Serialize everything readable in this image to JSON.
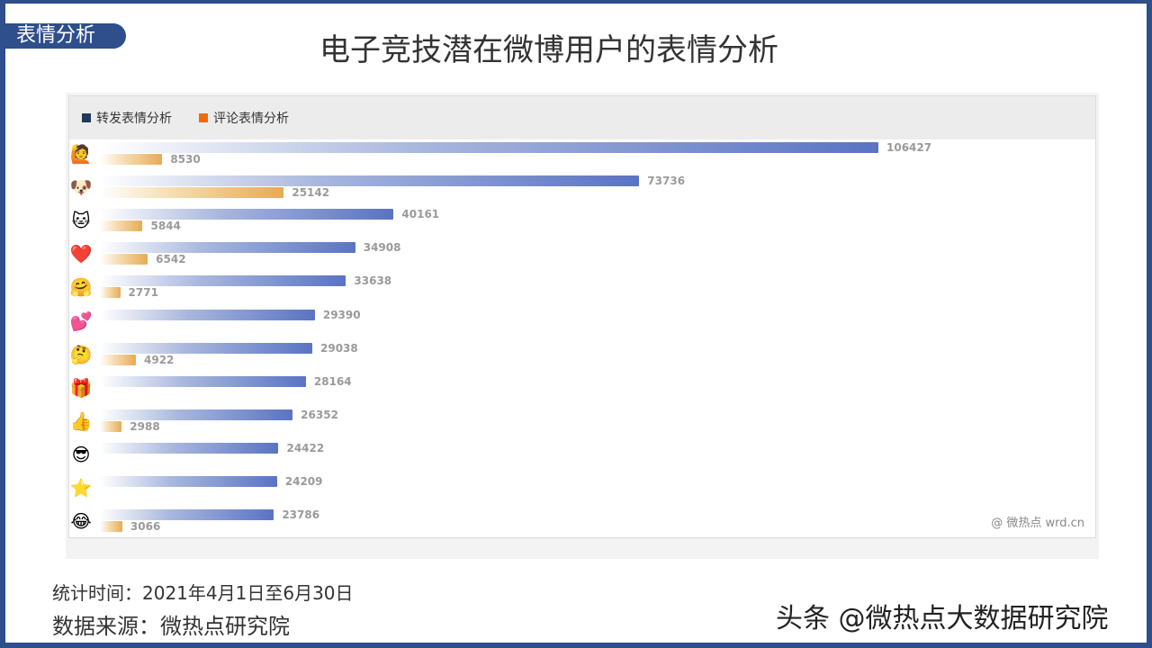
{
  "tag": "表情分析",
  "title": "电子竞技潜在微博用户的表情分析",
  "footer": {
    "time": "统计时间：2021年4月1日至6月30日",
    "source": "数据来源：微热点研究院",
    "brand": "头条 @微热点大数据研究院"
  },
  "watermark": "@ 微热点  wrd.cn",
  "colors": {
    "frame": "#2e4e8c",
    "forward": "#5a73c3",
    "comment": "#e8aa55",
    "legend_forward": "#1f3a5c",
    "legend_comment": "#ee6a12"
  },
  "chart_data": {
    "type": "bar",
    "orientation": "horizontal",
    "legend_position": "top-left",
    "categories": [
      "emoji-1",
      "emoji-2",
      "emoji-3",
      "emoji-4",
      "emoji-5",
      "emoji-6",
      "emoji-7",
      "emoji-8",
      "emoji-9",
      "emoji-10",
      "emoji-11",
      "emoji-12"
    ],
    "category_icons": [
      "waving-figure-icon",
      "doge-icon",
      "cat-face-icon",
      "heart-icon",
      "hugging-face-icon",
      "hearts-icon",
      "thinking-face-icon",
      "gift-icon",
      "thumbs-figure-icon",
      "sunglasses-face-icon",
      "star-icon",
      "laughing-face-icon"
    ],
    "category_glyphs": [
      "🙋",
      "🐶",
      "🐱",
      "❤️",
      "🤗",
      "💕",
      "🤔",
      "🎁",
      "👍",
      "😎",
      "⭐",
      "😂"
    ],
    "series": [
      {
        "name": "转发表情分析",
        "values": [
          106427,
          73736,
          40161,
          34908,
          33638,
          29390,
          29038,
          28164,
          26352,
          24422,
          24209,
          23786
        ]
      },
      {
        "name": "评论表情分析",
        "values": [
          8530,
          25142,
          5844,
          6542,
          2771,
          null,
          4922,
          null,
          2988,
          null,
          null,
          3066
        ]
      }
    ],
    "xlim": [
      0,
      106427
    ],
    "grid": false
  }
}
